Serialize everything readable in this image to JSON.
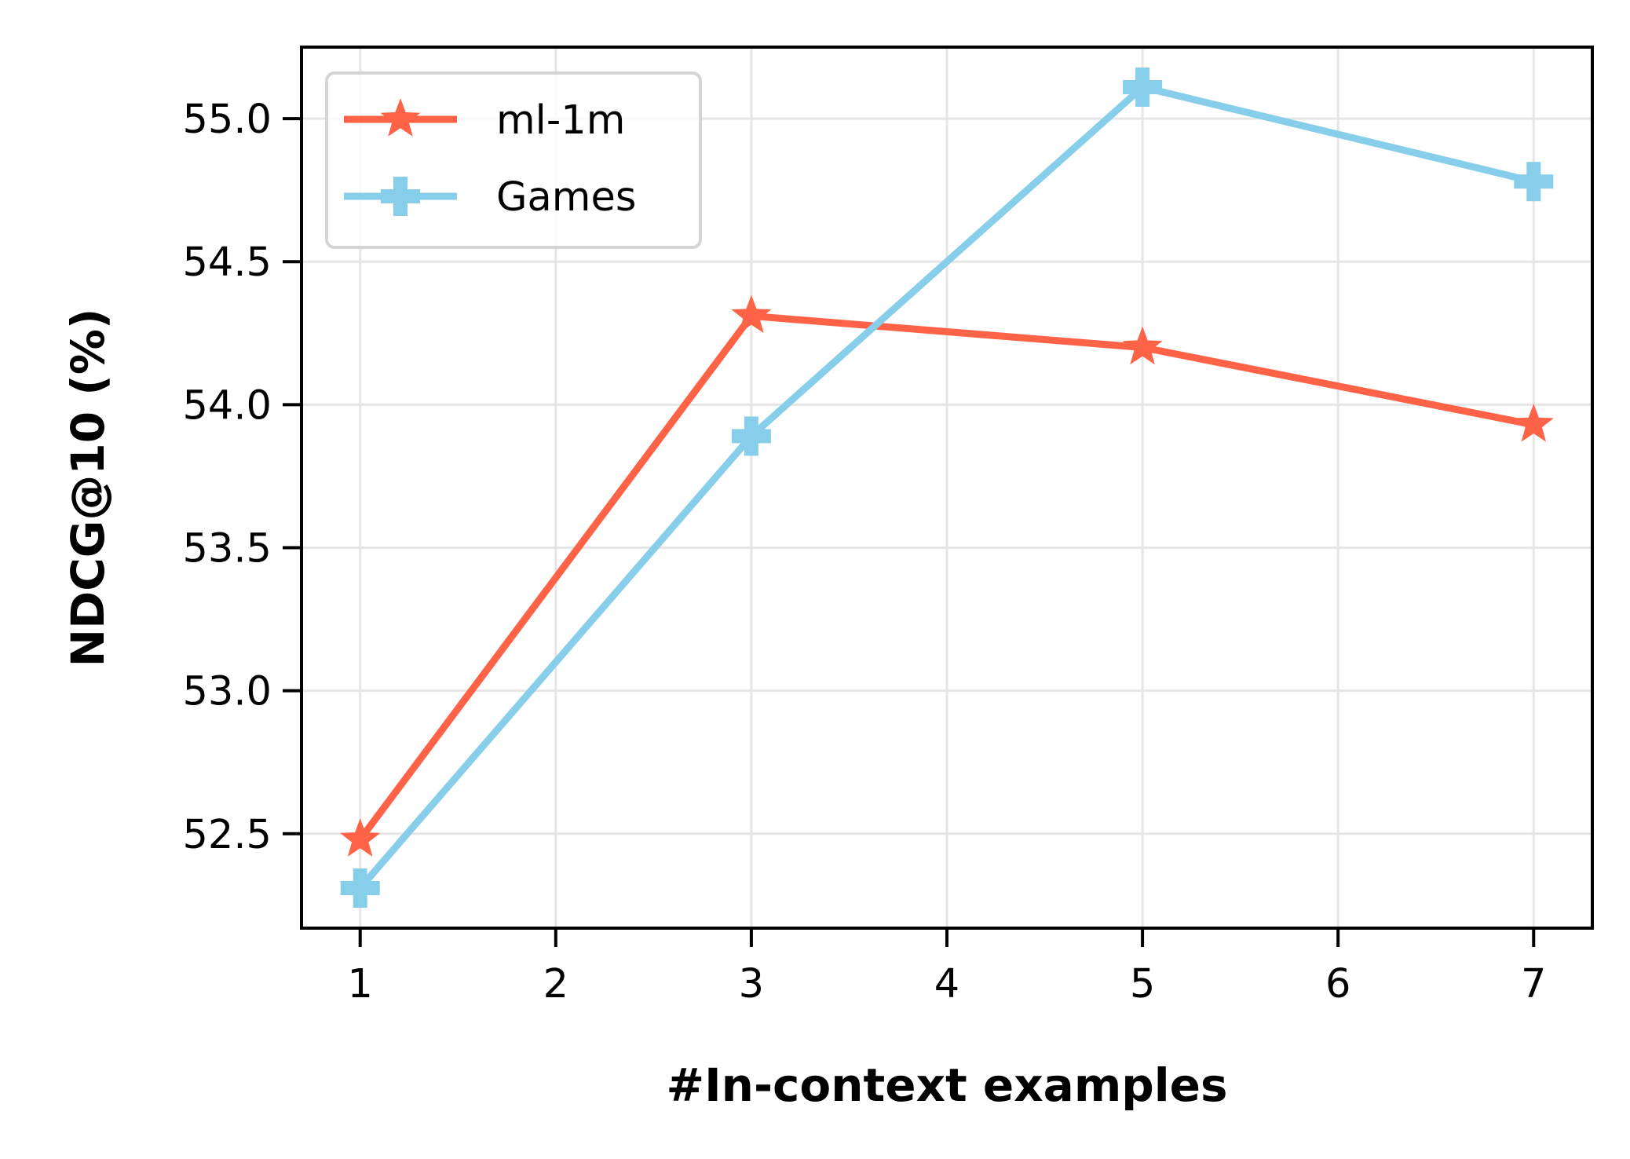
{
  "chart_data": {
    "type": "line",
    "title": "",
    "xlabel": "#In-context examples",
    "ylabel": "NDCG@10 (%)",
    "x": [
      1,
      3,
      5,
      7
    ],
    "xticks": [
      1,
      2,
      3,
      4,
      5,
      6,
      7
    ],
    "xtick_labels": [
      "1",
      "2",
      "3",
      "4",
      "5",
      "6",
      "7"
    ],
    "xlim": [
      0.7,
      7.3
    ],
    "yticks": [
      52.5,
      53.0,
      53.5,
      54.0,
      54.5,
      55.0
    ],
    "ytick_labels": [
      "52.5",
      "53.0",
      "53.5",
      "54.0",
      "54.5",
      "55.0"
    ],
    "ylim": [
      52.17,
      55.25
    ],
    "grid": true,
    "legend_position": "top-left",
    "series": [
      {
        "name": "ml-1m",
        "values": [
          52.48,
          54.31,
          54.2,
          53.93
        ],
        "color": "#FF6347",
        "marker": "star"
      },
      {
        "name": "Games",
        "values": [
          52.31,
          53.89,
          55.11,
          54.78
        ],
        "color": "#87CEEB",
        "marker": "plus"
      }
    ]
  }
}
